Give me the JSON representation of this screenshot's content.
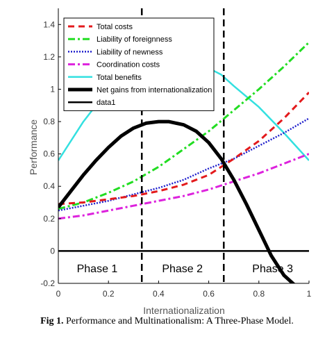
{
  "chart_data": {
    "type": "line",
    "xlabel": "Internationalization",
    "ylabel": "Performance",
    "xlim": [
      0,
      1
    ],
    "ylim": [
      -0.2,
      1.5
    ],
    "xticks": [
      "0",
      "0.2",
      "0.4",
      "0.6",
      "0.8",
      "1"
    ],
    "yticks": [
      "-0.2",
      "0",
      "0.2",
      "0.4",
      "0.6",
      "0.8",
      "1",
      "1.2",
      "1.4"
    ],
    "grid": false,
    "legend_position": "top-left",
    "series": [
      {
        "name": "Total costs",
        "color": "#e31a1c",
        "style": "dashed",
        "x": [
          0,
          0.1,
          0.2,
          0.3,
          0.4,
          0.5,
          0.6,
          0.65,
          0.7,
          0.8,
          0.9,
          1.0
        ],
        "y": [
          0.29,
          0.3,
          0.32,
          0.34,
          0.37,
          0.41,
          0.47,
          0.52,
          0.57,
          0.68,
          0.82,
          0.98
        ]
      },
      {
        "name": "Liability of foreignness",
        "color": "#22dd22",
        "style": "dashdot",
        "x": [
          0,
          0.1,
          0.2,
          0.3,
          0.4,
          0.5,
          0.6,
          0.7,
          0.8,
          0.9,
          1.0
        ],
        "y": [
          0.26,
          0.3,
          0.36,
          0.43,
          0.52,
          0.63,
          0.74,
          0.87,
          1.0,
          1.14,
          1.29
        ]
      },
      {
        "name": "Liability of newness",
        "color": "#1f1fcc",
        "style": "dotted",
        "x": [
          0,
          0.1,
          0.2,
          0.3,
          0.4,
          0.5,
          0.6,
          0.7,
          0.8,
          0.9,
          1.0
        ],
        "y": [
          0.25,
          0.28,
          0.31,
          0.35,
          0.39,
          0.44,
          0.51,
          0.57,
          0.65,
          0.73,
          0.82
        ]
      },
      {
        "name": "Coordination costs",
        "color": "#dd22dd",
        "style": "dashdot",
        "x": [
          0,
          0.1,
          0.2,
          0.3,
          0.4,
          0.5,
          0.6,
          0.7,
          0.8,
          0.9,
          1.0
        ],
        "y": [
          0.2,
          0.22,
          0.25,
          0.28,
          0.31,
          0.34,
          0.38,
          0.43,
          0.48,
          0.54,
          0.6
        ]
      },
      {
        "name": "Total benefits",
        "color": "#33e0e0",
        "style": "solid",
        "x": [
          0,
          0.1,
          0.2,
          0.3,
          0.4,
          0.5,
          0.6,
          0.65,
          0.7,
          0.8,
          0.9,
          1.0
        ],
        "y": [
          0.56,
          0.8,
          1.0,
          1.12,
          1.17,
          1.17,
          1.13,
          1.09,
          1.02,
          0.89,
          0.73,
          0.56
        ]
      },
      {
        "name": "Net gains from internationalization",
        "color": "#000000",
        "style": "solid-thick",
        "x": [
          0,
          0.05,
          0.1,
          0.15,
          0.2,
          0.25,
          0.3,
          0.35,
          0.4,
          0.44,
          0.5,
          0.55,
          0.6,
          0.65,
          0.7,
          0.75,
          0.8,
          0.85,
          0.9,
          0.95
        ],
        "y": [
          0.27,
          0.37,
          0.47,
          0.56,
          0.64,
          0.71,
          0.76,
          0.79,
          0.8,
          0.8,
          0.78,
          0.74,
          0.67,
          0.57,
          0.44,
          0.29,
          0.13,
          -0.03,
          -0.15,
          -0.22
        ]
      },
      {
        "name": "data1",
        "color": "#000000",
        "style": "solid",
        "x": [
          0,
          1
        ],
        "y": [
          0,
          0
        ]
      }
    ],
    "vlines": [
      0.333,
      0.66
    ],
    "annotations": [
      {
        "text": "Phase 1",
        "x": 0.155,
        "y": -0.105
      },
      {
        "text": "Phase 2",
        "x": 0.495,
        "y": -0.105
      },
      {
        "text": "Phase 3",
        "x": 0.855,
        "y": -0.105
      }
    ]
  },
  "caption": {
    "label": "Fig 1.",
    "text": " Performance and Multinationalism: A Three-Phase Model."
  }
}
